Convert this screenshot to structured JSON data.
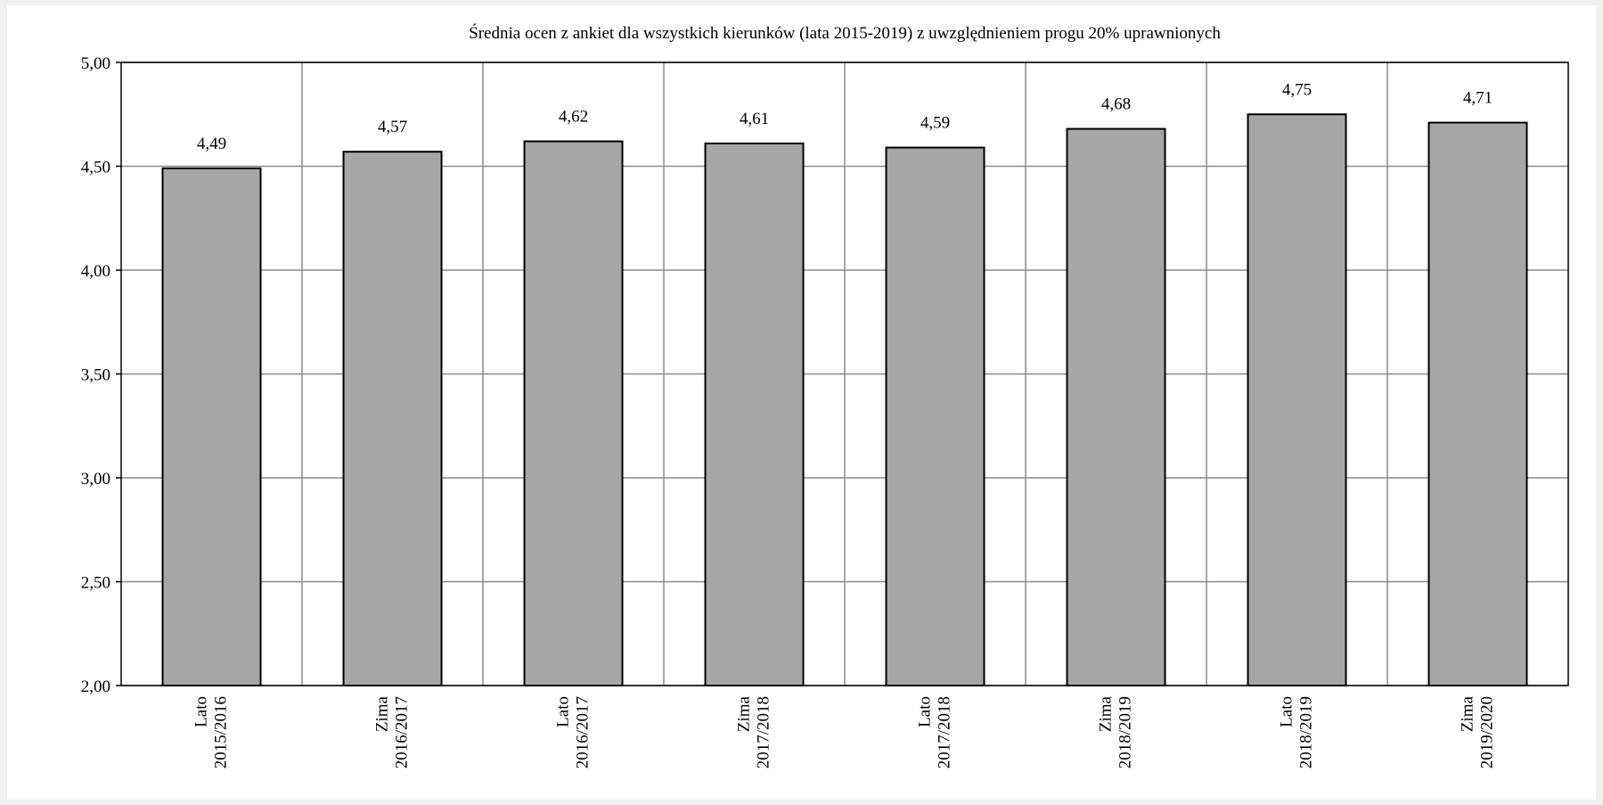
{
  "chart_data": {
    "type": "bar",
    "title": "Średnia ocen z ankiet dla wszystkich kierunków (lata 2015-2019) z uwzględnieniem progu 20% uprawnionych",
    "xlabel": "",
    "ylabel": "",
    "ylim": [
      2.0,
      5.0
    ],
    "yticks": [
      "2,00",
      "2,50",
      "3,00",
      "3,50",
      "4,00",
      "4,50",
      "5,00"
    ],
    "ytick_values": [
      2.0,
      2.5,
      3.0,
      3.5,
      4.0,
      4.5,
      5.0
    ],
    "categories": [
      [
        "Lato",
        "2015/2016"
      ],
      [
        "Zima",
        "2016/2017"
      ],
      [
        "Lato",
        "2016/2017"
      ],
      [
        "Zima",
        "2017/2018"
      ],
      [
        "Lato",
        "2017/2018"
      ],
      [
        "Zima",
        "2018/2019"
      ],
      [
        "Lato",
        "2018/2019"
      ],
      [
        "Zima",
        "2019/2020"
      ]
    ],
    "values": [
      4.49,
      4.57,
      4.62,
      4.61,
      4.59,
      4.68,
      4.75,
      4.71
    ],
    "value_labels": [
      "4,49",
      "4,57",
      "4,62",
      "4,61",
      "4,59",
      "4,68",
      "4,75",
      "4,71"
    ],
    "grid": true,
    "legend": "none",
    "colors": {
      "bar_fill": "#a6a6a6",
      "bar_stroke": "#000000",
      "grid": "#8c8c8c",
      "axis": "#000000",
      "background": "#ffffff",
      "page": "#f0f0f0"
    }
  }
}
